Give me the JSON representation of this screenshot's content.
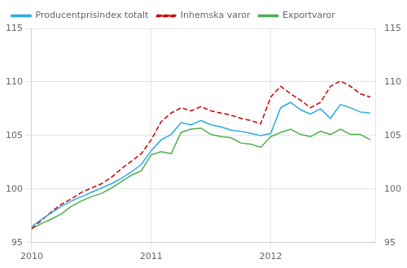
{
  "chart_data": {
    "type": "line",
    "x": [
      2010,
      2010.0833333333333,
      2010.1666666666667,
      2010.25,
      2010.3333333333333,
      2010.4166666666667,
      2010.5,
      2010.5833333333333,
      2010.6666666666667,
      2010.75,
      2010.8333333333333,
      2010.9166666666667,
      2011,
      2011.0833333333333,
      2011.1666666666667,
      2011.25,
      2011.3333333333333,
      2011.4166666666667,
      2011.5,
      2011.5833333333333,
      2011.6666666666667,
      2011.75,
      2011.8333333333333,
      2011.9166666666667,
      2012,
      2012.0833333333333,
      2012.1666666666667,
      2012.25,
      2012.3333333333333,
      2012.4166666666667,
      2012.5,
      2012.5833333333333,
      2012.6666666666667,
      2012.75,
      2012.8333333333333
    ],
    "series": [
      {
        "name": "Producentprisindex totalt",
        "color": "#29ABE2",
        "line_style": "solid",
        "values": [
          96.5,
          97.2,
          97.8,
          98.4,
          98.9,
          99.3,
          99.7,
          100.1,
          100.5,
          101.0,
          101.6,
          102.3,
          103.6,
          104.6,
          105.1,
          106.2,
          106.0,
          106.4,
          106.0,
          105.8,
          105.5,
          105.4,
          105.2,
          105.0,
          105.2,
          107.6,
          108.1,
          107.4,
          107.0,
          107.5,
          106.6,
          107.9,
          107.6,
          107.2,
          107.1
        ]
      },
      {
        "name": "Inhemska varor",
        "color": "#CC0000",
        "line_style": "dashed",
        "values": [
          96.3,
          97.1,
          97.9,
          98.6,
          99.1,
          99.7,
          100.1,
          100.5,
          101.1,
          101.9,
          102.6,
          103.3,
          104.6,
          106.3,
          107.1,
          107.6,
          107.3,
          107.7,
          107.3,
          107.1,
          106.9,
          106.6,
          106.4,
          106.1,
          108.6,
          109.6,
          108.9,
          108.3,
          107.6,
          108.1,
          109.6,
          110.1,
          109.6,
          108.9,
          108.6
        ]
      },
      {
        "name": "Exportvaror",
        "color": "#4CAF50",
        "line_style": "solid",
        "values": [
          96.3,
          96.8,
          97.2,
          97.7,
          98.4,
          98.9,
          99.3,
          99.6,
          100.1,
          100.7,
          101.3,
          101.7,
          103.2,
          103.5,
          103.3,
          105.3,
          105.6,
          105.7,
          105.1,
          104.9,
          104.8,
          104.3,
          104.2,
          103.9,
          104.9,
          105.3,
          105.6,
          105.1,
          104.9,
          105.4,
          105.1,
          105.6,
          105.1,
          105.1,
          104.6
        ]
      }
    ],
    "xlim": [
      2010,
      2012.875
    ],
    "xticks": [
      2010,
      2011,
      2012
    ],
    "ylim": [
      95,
      115
    ],
    "yticks": [
      95,
      100,
      105,
      110,
      115
    ],
    "y2lim": [
      95,
      115
    ],
    "y2ticks": [
      95,
      100,
      105,
      110,
      115
    ],
    "grid": true,
    "legend": "upper left"
  }
}
